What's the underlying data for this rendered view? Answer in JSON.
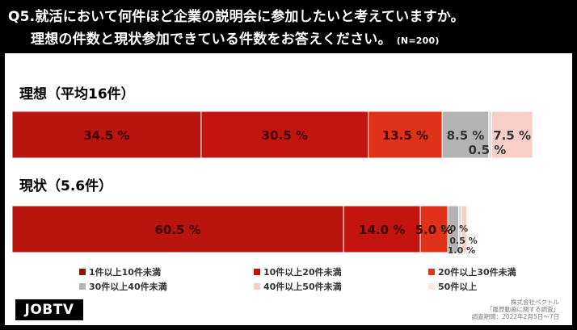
{
  "header": {
    "line1": "Q5.就活において何件ほど企業の説明会に参加したいと考えていますか。",
    "line2": "理想の件数と現状参加できている件数をお答えください。",
    "n": "(N=200)"
  },
  "chart_data": {
    "type": "bar",
    "orientation": "horizontal-stacked-100",
    "categories": [
      "1件以上10件未満",
      "10件以上20件未満",
      "20件以上30件未満",
      "30件以上40件未満",
      "40件以上50件未満",
      "50件以上"
    ],
    "colors": [
      "#8f1010",
      "#c4140f",
      "#e03218",
      "#b3b3b3",
      "#d9d9d9",
      "#f8cfc6"
    ],
    "rows": [
      {
        "label": "理想（平均16件）",
        "values": [
          34.5,
          30.5,
          13.5,
          8.5,
          0.5,
          7.5
        ],
        "labels": [
          "34.5 %",
          "30.5 %",
          "13.5 %",
          "8.5 %",
          "0.5 %",
          "7.5 %"
        ]
      },
      {
        "label": "現状（5.6件）",
        "values": [
          60.5,
          14.0,
          5.0,
          2.0,
          0.5,
          1.0
        ],
        "labels": [
          "60.5 %",
          "14.0 %",
          "5.0 %",
          "2.0 %",
          "0.5 %",
          "1.0 %"
        ]
      }
    ],
    "xlim": [
      0,
      100
    ]
  },
  "legend": [
    {
      "label": "1件以上10件未満",
      "color": "#8f1010"
    },
    {
      "label": "10件以上20件未満",
      "color": "#c4140f"
    },
    {
      "label": "20件以上30件未満",
      "color": "#e03218"
    },
    {
      "label": "30件以上40件未満",
      "color": "#b3b3b3"
    },
    {
      "label": "40件以上50件未満",
      "color": "#f8cfc6"
    },
    {
      "label": "50件以上",
      "color": "#f8cfc6"
    }
  ],
  "logo": "JOBTV",
  "source": {
    "line1": "株式会社ベクトル",
    "line2": "「履歴動画に関する調査」",
    "line3": "調査期間：2022年2月5日～7日"
  }
}
